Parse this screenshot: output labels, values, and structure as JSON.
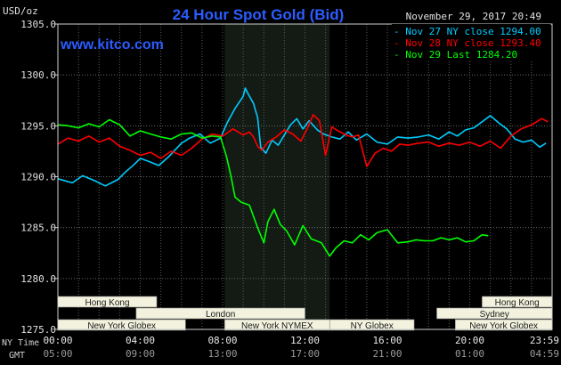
{
  "chart_data": {
    "type": "line",
    "title": "24 Hour Spot Gold (Bid)",
    "site": "www.kitco.com",
    "timestamp": "November 29, 2017 20:49",
    "ylabel": "USD/oz",
    "ylim": [
      1275.0,
      1305.0
    ],
    "y_ticks": [
      "1305.0",
      "1300.0",
      "1295.0",
      "1290.0",
      "1285.0",
      "1280.0",
      "1275.0"
    ],
    "y_tick_values": [
      1305,
      1300,
      1295,
      1290,
      1285,
      1280,
      1275
    ],
    "xlim": [
      0,
      24
    ],
    "x_ticks_ny": [
      "00:00",
      "04:00",
      "08:00",
      "12:00",
      "16:00",
      "20:00",
      "23:59"
    ],
    "x_ticks_gmt": [
      "05:00",
      "09:00",
      "13:00",
      "17:00",
      "21:00",
      "01:00",
      "04:59"
    ],
    "x_tick_values": [
      0,
      4,
      8,
      12,
      16,
      20,
      24
    ],
    "x_row_labels": {
      "ny": "NY Time",
      "gmt": "GMT"
    },
    "grid": true,
    "legend_position": "top-right",
    "highlight_region": [
      8.1,
      13.2
    ],
    "sessions": [
      {
        "name": "Hong Kong",
        "start": 0.0,
        "end": 4.8,
        "row": 0
      },
      {
        "name": "London",
        "start": 3.8,
        "end": 12.0,
        "row": 1
      },
      {
        "name": "New York Globex",
        "start": 0.0,
        "end": 6.2,
        "row": 2
      },
      {
        "name": "New York NYMEX",
        "start": 8.1,
        "end": 13.2,
        "row": 2
      },
      {
        "name": "NY Globex",
        "start": 13.2,
        "end": 17.3,
        "row": 2
      },
      {
        "name": "Hong Kong",
        "start": 20.6,
        "end": 24.0,
        "row": 0
      },
      {
        "name": "Sydney",
        "start": 18.4,
        "end": 24.0,
        "row": 1
      },
      {
        "name": "New York Globex",
        "start": 19.3,
        "end": 24.0,
        "row": 2
      }
    ],
    "series": [
      {
        "name": "Nov 27 NY close 1294.00",
        "color": "#00ccff",
        "x": [
          0,
          0.7,
          1.2,
          1.8,
          2.3,
          2.9,
          3.3,
          3.7,
          4.0,
          4.4,
          4.9,
          5.4,
          6.0,
          6.4,
          6.9,
          7.4,
          7.9,
          8.2,
          8.6,
          9.0,
          9.1,
          9.25,
          9.5,
          9.7,
          9.85,
          10.1,
          10.4,
          10.7,
          11.0,
          11.3,
          11.6,
          11.9,
          12.2,
          12.6,
          12.9,
          13.3,
          13.7,
          14.1,
          14.5,
          15.0,
          15.5,
          16.0,
          16.5,
          17.0,
          17.5,
          18.0,
          18.5,
          19.0,
          19.4,
          19.8,
          20.2,
          20.6,
          21.0,
          21.4,
          21.8,
          22.2,
          22.6,
          23.0,
          23.4,
          23.7
        ],
        "y": [
          1289.8,
          1289.4,
          1290.1,
          1289.6,
          1289.1,
          1289.7,
          1290.5,
          1291.2,
          1291.8,
          1291.5,
          1291.1,
          1292.0,
          1293.3,
          1293.8,
          1294.2,
          1293.3,
          1293.8,
          1295.2,
          1296.7,
          1297.9,
          1298.7,
          1298.1,
          1297.2,
          1295.8,
          1292.9,
          1292.3,
          1293.6,
          1293.1,
          1294.1,
          1295.1,
          1295.7,
          1294.7,
          1295.5,
          1294.6,
          1294.2,
          1293.9,
          1293.7,
          1294.4,
          1293.6,
          1294.2,
          1293.4,
          1293.2,
          1293.9,
          1293.8,
          1293.9,
          1294.1,
          1293.7,
          1294.4,
          1294.0,
          1294.6,
          1294.8,
          1295.4,
          1296.0,
          1295.3,
          1294.7,
          1293.7,
          1293.4,
          1293.6,
          1292.9,
          1293.3
        ]
      },
      {
        "name": "Nov 28 NY close 1293.40",
        "color": "#ff0000",
        "x": [
          0,
          0.5,
          1.0,
          1.5,
          2.0,
          2.5,
          3.0,
          3.5,
          4.0,
          4.5,
          5.0,
          5.5,
          6.0,
          6.5,
          7.0,
          7.5,
          8.0,
          8.5,
          9.0,
          9.3,
          9.5,
          9.7,
          9.9,
          10.2,
          10.6,
          11.0,
          11.4,
          11.8,
          12.1,
          12.4,
          12.7,
          13.0,
          13.3,
          13.6,
          14.0,
          14.3,
          14.6,
          15.0,
          15.4,
          15.8,
          16.2,
          16.6,
          17.0,
          17.5,
          18.0,
          18.5,
          19.0,
          19.5,
          20.0,
          20.5,
          21.0,
          21.5,
          22.0,
          22.5,
          23.0,
          23.5,
          23.8
        ],
        "y": [
          1293.2,
          1293.8,
          1293.5,
          1294.0,
          1293.4,
          1293.8,
          1293.0,
          1292.6,
          1292.1,
          1292.4,
          1291.8,
          1292.5,
          1292.1,
          1292.8,
          1293.7,
          1294.2,
          1294.0,
          1294.7,
          1294.1,
          1294.4,
          1293.9,
          1293.0,
          1292.6,
          1293.4,
          1293.9,
          1294.6,
          1294.2,
          1293.5,
          1294.7,
          1296.1,
          1295.5,
          1292.1,
          1294.9,
          1294.5,
          1294.1,
          1293.9,
          1294.1,
          1291.0,
          1292.3,
          1292.8,
          1292.5,
          1293.2,
          1293.1,
          1293.3,
          1293.4,
          1293.0,
          1293.3,
          1293.1,
          1293.4,
          1293.0,
          1293.5,
          1292.8,
          1294.0,
          1294.7,
          1295.1,
          1295.7,
          1295.4
        ]
      },
      {
        "name": "Nov 29 Last 1284.20",
        "color": "#00ff00",
        "x": [
          0,
          0.5,
          1.0,
          1.5,
          2.0,
          2.5,
          3.0,
          3.5,
          4.0,
          4.5,
          5.0,
          5.5,
          6.0,
          6.5,
          7.0,
          7.5,
          7.9,
          8.2,
          8.4,
          8.6,
          8.9,
          9.3,
          9.7,
          10.0,
          10.2,
          10.5,
          10.8,
          11.1,
          11.5,
          11.9,
          12.3,
          12.8,
          13.2,
          13.5,
          13.9,
          14.3,
          14.7,
          15.1,
          15.5,
          16.0,
          16.5,
          17.0,
          17.4,
          17.8,
          18.2,
          18.6,
          19.0,
          19.4,
          19.8,
          20.2,
          20.6,
          20.9
        ],
        "y": [
          1295.1,
          1295.0,
          1294.8,
          1295.2,
          1294.9,
          1295.6,
          1295.1,
          1294.0,
          1294.5,
          1294.2,
          1293.9,
          1293.7,
          1294.2,
          1294.3,
          1293.8,
          1294.0,
          1293.9,
          1291.9,
          1290.1,
          1288.0,
          1287.5,
          1287.2,
          1285.0,
          1283.5,
          1285.6,
          1286.8,
          1285.3,
          1284.7,
          1283.3,
          1285.2,
          1283.9,
          1283.5,
          1282.2,
          1283.0,
          1283.7,
          1283.5,
          1284.3,
          1283.8,
          1284.5,
          1284.8,
          1283.5,
          1283.6,
          1283.8,
          1283.7,
          1283.7,
          1284.0,
          1283.8,
          1284.0,
          1283.6,
          1283.7,
          1284.3,
          1284.2
        ]
      }
    ]
  }
}
